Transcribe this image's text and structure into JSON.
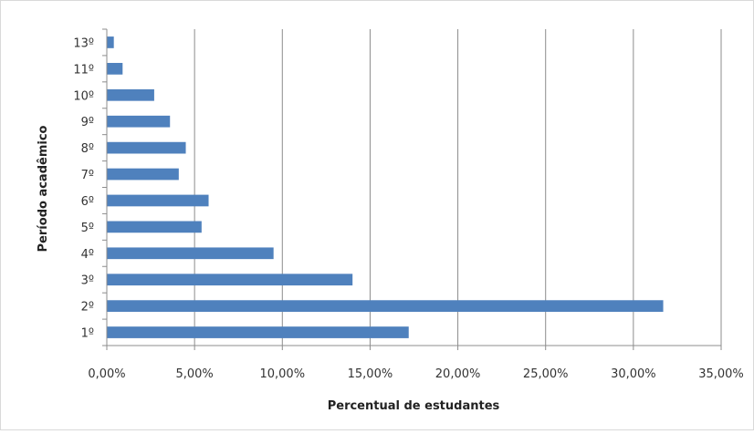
{
  "chart_data": {
    "type": "bar",
    "orientation": "horizontal",
    "title": "",
    "xlabel": "Percentual de estudantes",
    "ylabel": "Período acadêmico",
    "xlim": [
      0,
      35
    ],
    "x_tick_values": [
      0,
      5,
      10,
      15,
      20,
      25,
      30,
      35
    ],
    "x_tick_labels": [
      "0,00%",
      "5,00%",
      "10,00%",
      "15,00%",
      "20,00%",
      "25,00%",
      "30,00%",
      "35,00%"
    ],
    "categories": [
      "1º",
      "2º",
      "3º",
      "4º",
      "5º",
      "6º",
      "7º",
      "8º",
      "9º",
      "10º",
      "11º",
      "13º"
    ],
    "values": [
      17.2,
      31.7,
      14.0,
      9.5,
      5.4,
      5.8,
      4.1,
      4.5,
      3.6,
      2.7,
      0.9,
      0.4
    ],
    "grid": "vertical",
    "legend": "none",
    "bar_color": "#4F81BD"
  }
}
